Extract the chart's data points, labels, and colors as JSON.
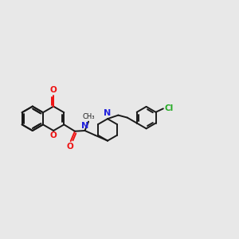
{
  "bg_color": "#e8e8e8",
  "bond_color": "#1a1a1a",
  "oxygen_color": "#ee1111",
  "nitrogen_color": "#2222dd",
  "chlorine_color": "#22aa22",
  "lw": 1.4,
  "figsize": [
    3.0,
    3.0
  ],
  "dpi": 100,
  "xlim": [
    0,
    12
  ],
  "ylim": [
    2,
    9
  ]
}
